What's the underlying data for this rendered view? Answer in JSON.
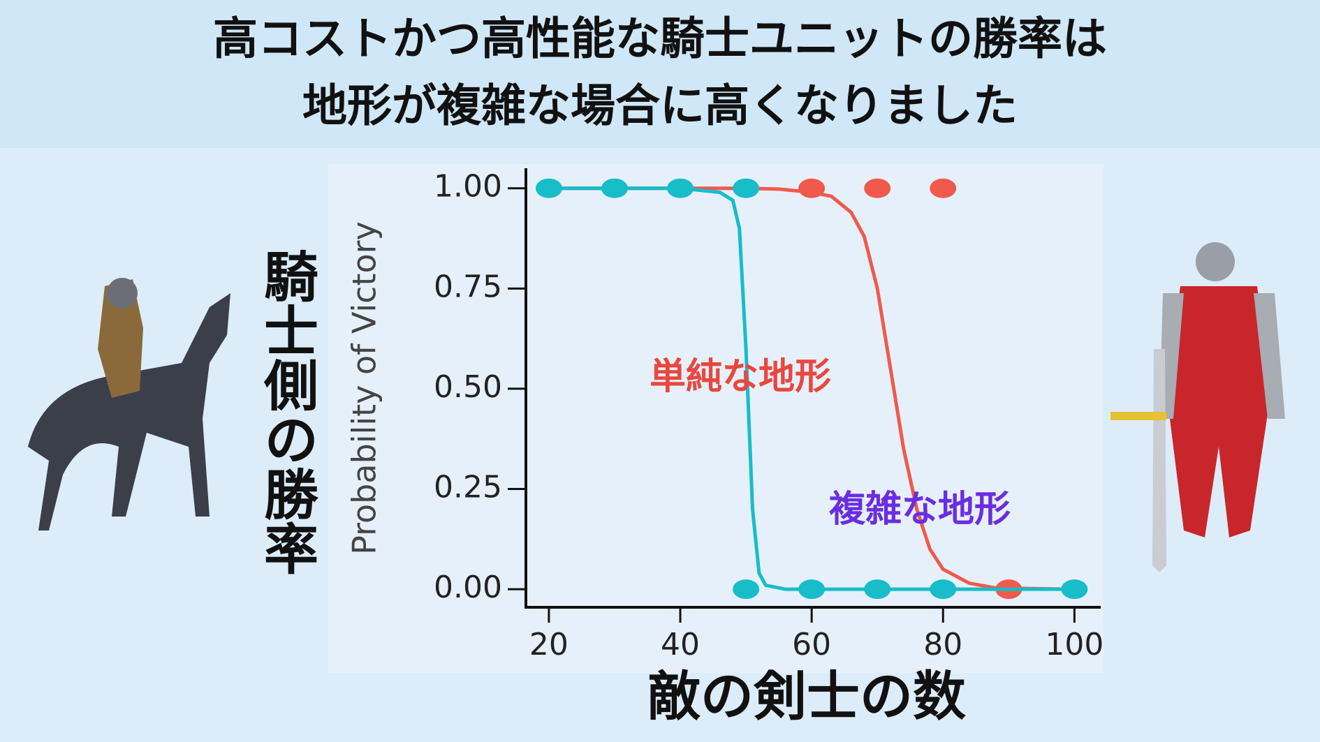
{
  "header": {
    "title_lines": [
      "高コストかつ高性能な騎士ユニットの勝率は",
      "地形が複雑な場合に高くなりました"
    ]
  },
  "side_label": "騎士側の勝率",
  "chart_data": {
    "type": "scatter",
    "x_label": "敵の剣士の数",
    "y_label": "Probability of Victory",
    "xlim": [
      16.5,
      104
    ],
    "ylim": [
      -0.045,
      1.05
    ],
    "xticks": [
      20,
      40,
      60,
      80,
      100
    ],
    "yticks": [
      {
        "value": 0,
        "label": "0.00"
      },
      {
        "value": 0.25,
        "label": "0.25"
      },
      {
        "value": 0.5,
        "label": "0.50"
      },
      {
        "value": 0.75,
        "label": "0.75"
      },
      {
        "value": 1,
        "label": "1.00"
      }
    ],
    "series": [
      {
        "name": "複雑な地形",
        "color": "#ef5a4c",
        "label_color": "#6a2ee0",
        "x": [
          60,
          70,
          80,
          90
        ],
        "values": [
          1,
          1,
          1,
          0
        ],
        "fit_x": [
          20,
          40,
          50,
          55,
          60,
          63,
          66,
          68,
          70,
          72,
          74,
          76,
          78,
          80,
          84,
          88,
          100
        ],
        "fit_values": [
          1,
          1,
          1,
          0.998,
          0.99,
          0.98,
          0.94,
          0.88,
          0.75,
          0.55,
          0.35,
          0.2,
          0.1,
          0.05,
          0.015,
          0.003,
          0
        ]
      },
      {
        "name": "単純な地形",
        "color": "#17bdc9",
        "label_color": "#e8473f",
        "x": [
          20,
          30,
          40,
          50,
          50,
          60,
          70,
          80,
          100
        ],
        "values": [
          1,
          1,
          1,
          1,
          0,
          0,
          0,
          0,
          0
        ],
        "fit_x": [
          20,
          40,
          46,
          48,
          49,
          50,
          51,
          52,
          53,
          56,
          60,
          100
        ],
        "fit_values": [
          1,
          1,
          0.99,
          0.97,
          0.9,
          0.6,
          0.2,
          0.04,
          0.01,
          0,
          0,
          0
        ]
      }
    ]
  }
}
